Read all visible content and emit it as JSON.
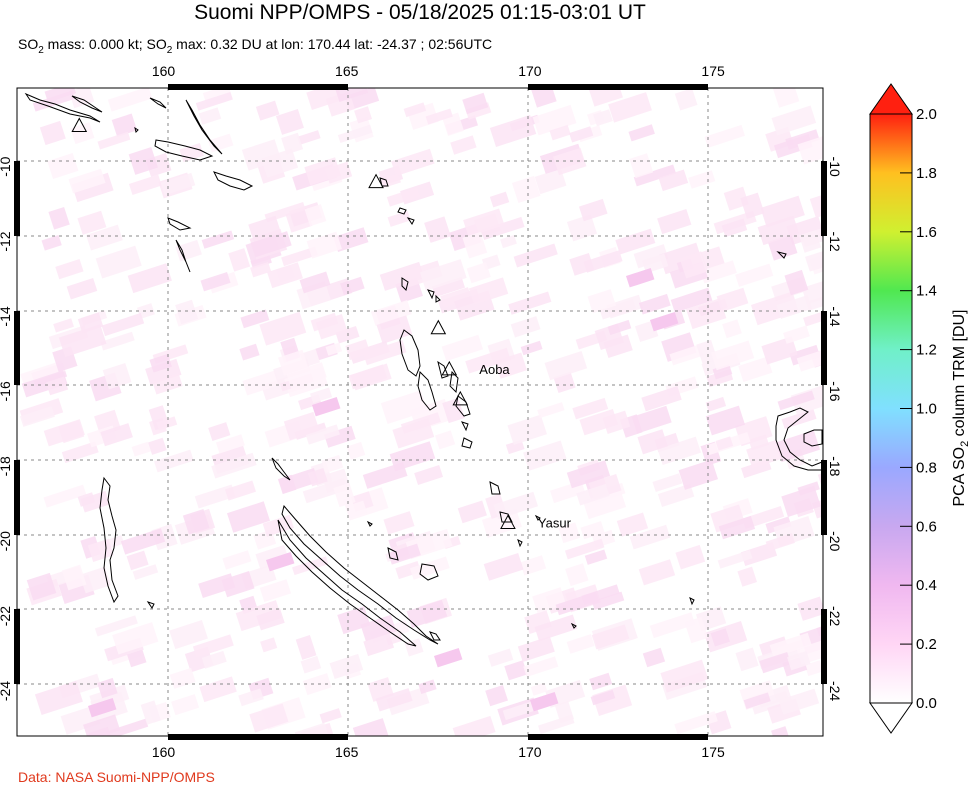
{
  "title": "Suomi NPP/OMPS - 05/18/2025 01:15-03:01 UT",
  "subtitle": {
    "part1": "SO",
    "sub1": "2",
    "part2": " mass: 0.000 kt; SO",
    "sub2": "2",
    "part3": " max: 0.32 DU at lon: 170.44 lat: -24.37 ; 02:56UTC"
  },
  "credit": "Data: NASA Suomi-NPP/OMPS",
  "map": {
    "lon_ticks": [
      "160",
      "165",
      "170",
      "175"
    ],
    "lat_ticks": [
      "-10",
      "-12",
      "-14",
      "-16",
      "-18",
      "-20",
      "-22",
      "-24"
    ],
    "lon_range": [
      156,
      178
    ],
    "lat_range": [
      -25.2,
      -7.9
    ],
    "volcanoes": [
      {
        "lon": 157.7,
        "lat": -8.9,
        "label": ""
      },
      {
        "lon": 165.8,
        "lat": -10.4,
        "label": ""
      },
      {
        "lon": 167.5,
        "lat": -14.3,
        "label": ""
      },
      {
        "lon": 167.8,
        "lat": -15.4,
        "label": "Aoba"
      },
      {
        "lon": 168.1,
        "lat": -16.2,
        "label": ""
      },
      {
        "lon": 169.4,
        "lat": -19.5,
        "label": "Yasur"
      }
    ]
  },
  "colorbar": {
    "label_main": "PCA SO",
    "label_sub": "2",
    "label_end": " column TRM [DU]",
    "ticks": [
      "0.0",
      "0.2",
      "0.4",
      "0.6",
      "0.8",
      "1.0",
      "1.2",
      "1.4",
      "1.6",
      "1.8",
      "2.0"
    ],
    "colors": [
      "#ffffff",
      "#ffd6f5",
      "#e8b0f0",
      "#b89cf0",
      "#8fa8ff",
      "#7fe8ff",
      "#6ef0c0",
      "#4ee84e",
      "#c8f030",
      "#ffd020",
      "#ff8020",
      "#ff2010"
    ]
  }
}
